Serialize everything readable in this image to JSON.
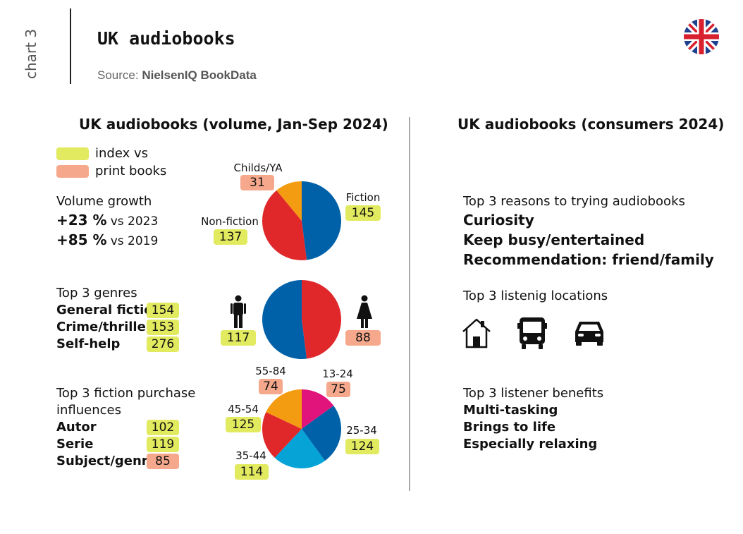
{
  "page": {
    "side_label": "chart 3",
    "title": "UK audiobooks",
    "source_prefix": "Source:",
    "source_name": "NielsenIQ BookData"
  },
  "left": {
    "heading": "UK audiobooks (volume, Jan-Sep 2024)",
    "legend": [
      {
        "label": "index vs",
        "color": "#e2ea5f"
      },
      {
        "label": "print books",
        "color": "#f5a88c"
      }
    ],
    "growth": {
      "label": "Volume growth",
      "rows": [
        {
          "value": "+23 %",
          "suffix": "vs 2023"
        },
        {
          "value": "+85 %",
          "suffix": "vs 2019"
        }
      ]
    },
    "genres": {
      "label": "Top 3 genres",
      "rows": [
        {
          "name": "General fiction",
          "index": "154",
          "tone": "yl"
        },
        {
          "name": "Crime/thriller",
          "index": "153",
          "tone": "yl"
        },
        {
          "name": "Self-help",
          "index": "276",
          "tone": "yl"
        }
      ]
    },
    "influences": {
      "label_line1": "Top 3 fiction purchase",
      "label_line2": "influences",
      "rows": [
        {
          "name": "Autor",
          "index": "102",
          "tone": "yl"
        },
        {
          "name": "Serie",
          "index": "119",
          "tone": "yl"
        },
        {
          "name": "Subject/genre",
          "index": "85",
          "tone": "or"
        }
      ]
    }
  },
  "chart_data": [
    {
      "type": "pie",
      "categories": [
        "Fiction",
        "Non-fiction",
        "Childs/YA"
      ],
      "values": [
        48,
        41,
        11
      ],
      "index_labels": [
        "145",
        "137",
        "31"
      ],
      "index_tones": [
        "yl",
        "yl",
        "or"
      ],
      "colors": [
        "#0061a8",
        "#e0282b",
        "#f39c12"
      ]
    },
    {
      "type": "pie",
      "categories": [
        "Female",
        "Male"
      ],
      "values": [
        48,
        52
      ],
      "index_labels": [
        "88",
        "117"
      ],
      "index_tones": [
        "or",
        "yl"
      ],
      "colors": [
        "#e0282b",
        "#0061a8"
      ]
    },
    {
      "type": "pie",
      "categories": [
        "13-24",
        "25-34",
        "35-44",
        "45-54",
        "55-84"
      ],
      "values": [
        15,
        25,
        22,
        20,
        18
      ],
      "index_labels": [
        "75",
        "124",
        "114",
        "125",
        "74"
      ],
      "index_tones": [
        "or",
        "yl",
        "yl",
        "yl",
        "or"
      ],
      "colors": [
        "#e0147a",
        "#0061a8",
        "#06a3d6",
        "#e0282b",
        "#f39c12"
      ]
    }
  ],
  "right": {
    "heading": "UK audiobooks (consumers 2024)",
    "reasons": {
      "label": "Top 3 reasons to trying audiobooks",
      "items": [
        "Curiosity",
        "Keep busy/entertained",
        "Recommendation: friend/family"
      ]
    },
    "locations": {
      "label": "Top 3 listenig locations",
      "icons": [
        "home-icon",
        "bus-icon",
        "car-icon"
      ]
    },
    "benefits": {
      "label": "Top 3 listener benefits",
      "items": [
        "Multi-tasking",
        "Brings to life",
        "Especially relaxing"
      ]
    }
  }
}
